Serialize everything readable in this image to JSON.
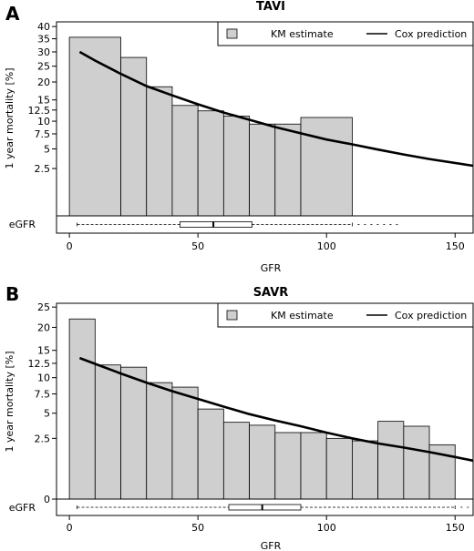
{
  "chart_data": [
    {
      "panel_label": "A",
      "title": "TAVI",
      "type": "bar",
      "xlabel": "GFR",
      "ylabel": "1 year mortality [%]",
      "boxplot_label": "eGFR",
      "x_ticks": [
        "0",
        "50",
        "100",
        "150"
      ],
      "x_tick_values": [
        0,
        50,
        100,
        150
      ],
      "xlim": [
        -5,
        157
      ],
      "y_ticks": [
        "2.5",
        "5",
        "7.5",
        "10",
        "12.5",
        "15",
        "20",
        "25",
        "30",
        "35",
        "40"
      ],
      "y_tick_values": [
        2.5,
        5,
        7.5,
        10,
        12.5,
        15,
        20,
        25,
        30,
        35,
        40
      ],
      "y_scale": "sqrt",
      "ylim": [
        0,
        42
      ],
      "legend": {
        "position": "top-right",
        "entries": [
          "KM estimate",
          "Cox prediction"
        ]
      },
      "bars": [
        {
          "x0": 0,
          "x1": 20,
          "value": 35.6
        },
        {
          "x0": 20,
          "x1": 30,
          "value": 28.0
        },
        {
          "x0": 30,
          "x1": 40,
          "value": 18.6
        },
        {
          "x0": 40,
          "x1": 50,
          "value": 13.6
        },
        {
          "x0": 50,
          "x1": 60,
          "value": 12.3
        },
        {
          "x0": 60,
          "x1": 70,
          "value": 11.1
        },
        {
          "x0": 70,
          "x1": 80,
          "value": 9.4
        },
        {
          "x0": 80,
          "x1": 90,
          "value": 9.4
        },
        {
          "x0": 90,
          "x1": 110,
          "value": 10.8
        }
      ],
      "cox_curve": {
        "x": [
          4,
          10,
          20,
          30,
          40,
          50,
          60,
          70,
          80,
          90,
          100,
          110,
          120,
          130,
          140,
          157
        ],
        "y": [
          30.0,
          26.9,
          22.5,
          18.8,
          16.2,
          13.9,
          11.9,
          10.3,
          8.8,
          7.6,
          6.5,
          5.7,
          4.9,
          4.2,
          3.6,
          2.8
        ]
      },
      "boxplot": {
        "whisker_low": 3,
        "q1": 43,
        "median": 56,
        "q3": 71,
        "whisker_high": 110
      }
    },
    {
      "panel_label": "B",
      "title": "SAVR",
      "type": "bar",
      "xlabel": "GFR",
      "ylabel": "1 year mortality [%]",
      "boxplot_label": "eGFR",
      "x_ticks": [
        "0",
        "50",
        "100",
        "150"
      ],
      "x_tick_values": [
        0,
        50,
        100,
        150
      ],
      "xlim": [
        -5,
        157
      ],
      "y_ticks": [
        "0",
        "2.5",
        "5",
        "7.5",
        "10",
        "12.5",
        "15",
        "20",
        "25"
      ],
      "y_tick_values": [
        0,
        2.5,
        5,
        7.5,
        10,
        12.5,
        15,
        20,
        25
      ],
      "y_scale": "sqrt",
      "ylim": [
        0,
        26
      ],
      "legend": {
        "position": "top-right",
        "entries": [
          "KM estimate",
          "Cox prediction"
        ]
      },
      "bars": [
        {
          "x0": 0,
          "x1": 10,
          "value": 22.0
        },
        {
          "x0": 10,
          "x1": 20,
          "value": 12.2
        },
        {
          "x0": 20,
          "x1": 30,
          "value": 11.8
        },
        {
          "x0": 30,
          "x1": 40,
          "value": 9.2
        },
        {
          "x0": 40,
          "x1": 50,
          "value": 8.5
        },
        {
          "x0": 50,
          "x1": 60,
          "value": 5.5
        },
        {
          "x0": 60,
          "x1": 70,
          "value": 4.0
        },
        {
          "x0": 70,
          "x1": 80,
          "value": 3.7
        },
        {
          "x0": 80,
          "x1": 90,
          "value": 3.0
        },
        {
          "x0": 90,
          "x1": 100,
          "value": 3.0
        },
        {
          "x0": 100,
          "x1": 110,
          "value": 2.5
        },
        {
          "x0": 110,
          "x1": 120,
          "value": 2.3
        },
        {
          "x0": 120,
          "x1": 130,
          "value": 4.1
        },
        {
          "x0": 130,
          "x1": 140,
          "value": 3.6
        },
        {
          "x0": 140,
          "x1": 150,
          "value": 2.0
        }
      ],
      "cox_curve": {
        "x": [
          4,
          10,
          20,
          30,
          40,
          50,
          60,
          70,
          80,
          90,
          100,
          110,
          120,
          130,
          140,
          150,
          157
        ],
        "y": [
          13.5,
          12.4,
          10.7,
          9.2,
          7.9,
          6.8,
          5.8,
          4.9,
          4.2,
          3.6,
          3.0,
          2.5,
          2.1,
          1.8,
          1.5,
          1.2,
          1.0
        ]
      },
      "boxplot": {
        "whisker_low": 3,
        "q1": 62,
        "median": 75,
        "q3": 90,
        "whisker_high": 150
      }
    }
  ]
}
